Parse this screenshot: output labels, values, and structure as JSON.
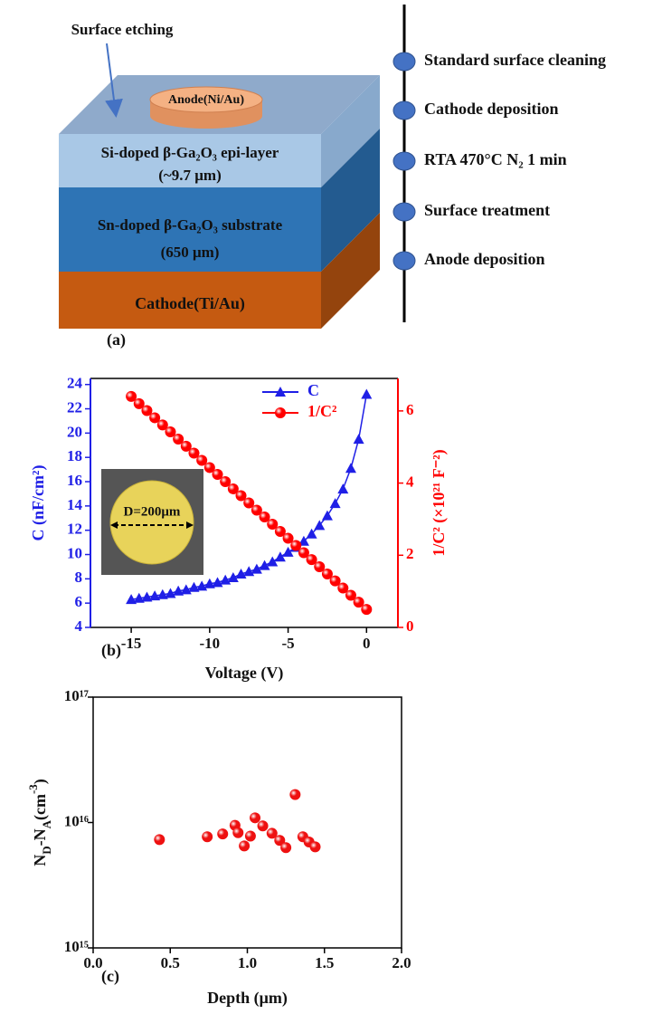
{
  "diagram": {
    "label": "(a)",
    "annotation": "Surface etching",
    "anode": "Anode(Ni/Au)",
    "layers": [
      {
        "name": "Si-doped β-Ga₂O₃ epi-layer",
        "thickness": "(~9.7 μm)"
      },
      {
        "name": "Sn-doped β-Ga₂O₃ substrate",
        "thickness": "(650 μm)"
      },
      {
        "name": "Cathode(Ti/Au)"
      }
    ],
    "steps": [
      "Standard surface cleaning",
      "Cathode deposition",
      "RTA 470°C N₂ 1 min",
      "Surface treatment",
      "Anode deposition"
    ]
  },
  "chart_data": [
    {
      "type": "line",
      "panel_label": "(b)",
      "xlabel": "Voltage (V)",
      "ylabel": "C (nF/cm²)",
      "y2label": "1/C² (×10²¹ F⁻²)",
      "inset_label": "D=200μm",
      "x": [
        -15,
        -14.5,
        -14,
        -13.5,
        -13,
        -12.5,
        -12,
        -11.5,
        -11,
        -10.5,
        -10,
        -9.5,
        -9,
        -8.5,
        -8,
        -7.5,
        -7,
        -6.5,
        -6,
        -5.5,
        -5,
        -4.5,
        -4,
        -3.5,
        -3,
        -2.5,
        -2,
        -1.5,
        -1,
        -0.5,
        0
      ],
      "series": [
        {
          "name": "C",
          "color": "#1f1fe6",
          "marker": "triangle",
          "values": [
            6.3,
            6.4,
            6.5,
            6.6,
            6.7,
            6.8,
            7.0,
            7.1,
            7.3,
            7.4,
            7.6,
            7.7,
            7.9,
            8.1,
            8.4,
            8.6,
            8.8,
            9.1,
            9.4,
            9.8,
            10.2,
            10.6,
            11.1,
            11.7,
            12.4,
            13.2,
            14.2,
            15.4,
            17.1,
            19.5,
            23.2
          ]
        },
        {
          "name": "1/C²",
          "color": "#ff0000",
          "marker": "circle",
          "axis": "y2",
          "values": [
            6.4,
            6.2,
            6.01,
            5.81,
            5.61,
            5.42,
            5.22,
            5.02,
            4.83,
            4.63,
            4.43,
            4.24,
            4.04,
            3.84,
            3.65,
            3.45,
            3.25,
            3.06,
            2.86,
            2.66,
            2.47,
            2.27,
            2.07,
            1.88,
            1.68,
            1.48,
            1.29,
            1.09,
            0.89,
            0.7,
            0.5
          ]
        }
      ],
      "xlim": [
        -17.6,
        2
      ],
      "ylim": [
        4,
        24.5
      ],
      "y2lim": [
        0,
        6.9
      ],
      "xticks": [
        -15,
        -10,
        -5,
        0
      ],
      "yticks": [
        4,
        6,
        8,
        10,
        12,
        14,
        16,
        18,
        20,
        22,
        24
      ],
      "y2ticks": [
        0,
        2,
        4,
        6
      ]
    },
    {
      "type": "scatter",
      "panel_label": "(c)",
      "xlabel": "Depth (μm)",
      "ylabel": [
        {
          "text": "N"
        },
        {
          "text": "D",
          "sub": true
        },
        {
          "text": "-N"
        },
        {
          "text": "A",
          "sub": true
        },
        {
          "text": "(cm"
        },
        {
          "text": "-3",
          "sup": true
        },
        {
          "text": ")"
        }
      ],
      "log": "y",
      "x": [
        0.43,
        0.74,
        0.84,
        0.92,
        0.94,
        0.98,
        1.02,
        1.05,
        1.1,
        1.16,
        1.21,
        1.25,
        1.31,
        1.36,
        1.4,
        1.44
      ],
      "series": [
        {
          "color": "#ee1111",
          "marker": "circle",
          "values": [
            7300000000000000.0,
            7700000000000000.0,
            8100000000000000.0,
            9500000000000000.0,
            8300000000000000.0,
            6500000000000000.0,
            7800000000000000.0,
            1.09e+16,
            9400000000000000.0,
            8200000000000000.0,
            7200000000000000.0,
            6300000000000000.0,
            1.67e+16,
            7700000000000000.0,
            7000000000000000.0,
            6400000000000000.0
          ]
        }
      ],
      "xlim": [
        0,
        2
      ],
      "ylim": [
        1000000000000000.0,
        1e+17
      ],
      "xticks": [
        {
          "value": 0,
          "label": "0.0"
        },
        0.5,
        {
          "value": 1,
          "label": "1.0"
        },
        1.5,
        {
          "value": 2,
          "label": "2.0"
        }
      ],
      "yticks": [
        {
          "value": 1000000000000000.0,
          "label": "10¹⁵"
        },
        {
          "value": 1e+16,
          "label": "10¹⁶"
        },
        {
          "value": 1e+17,
          "label": "10¹⁷"
        }
      ]
    }
  ]
}
